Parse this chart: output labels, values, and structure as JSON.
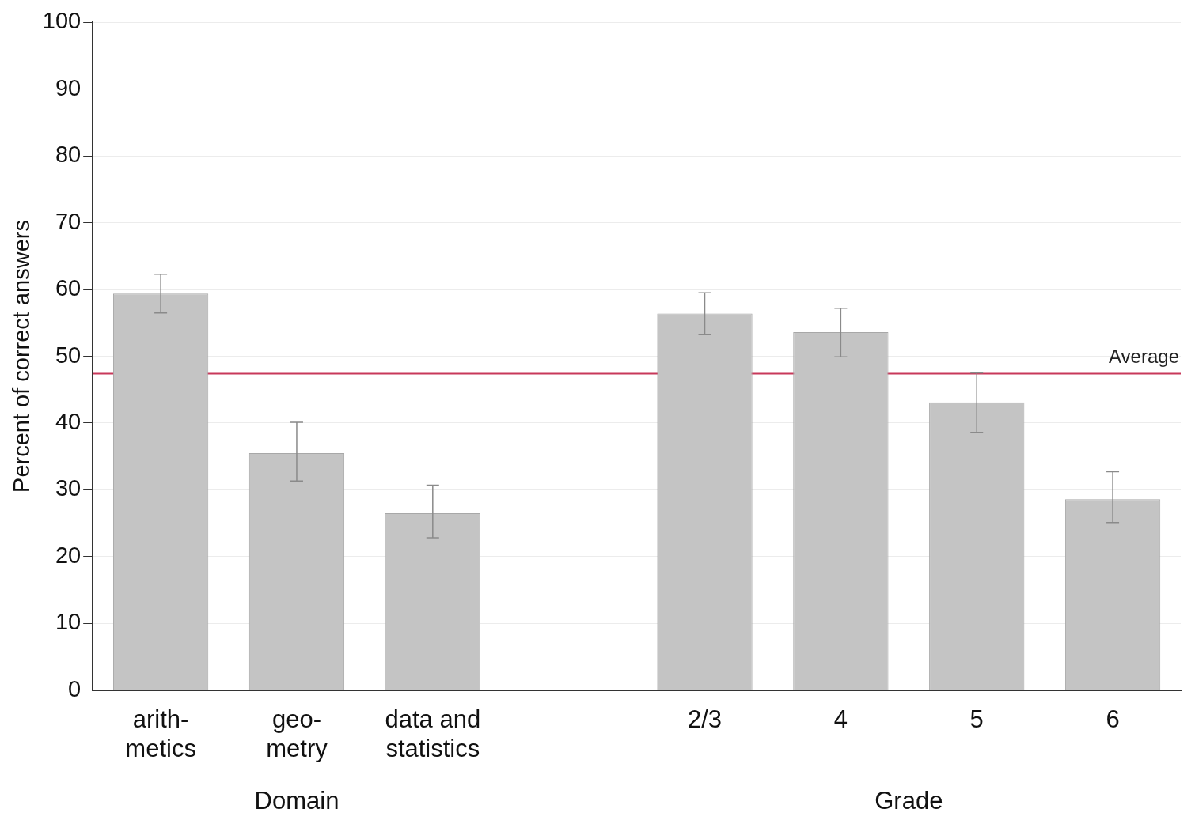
{
  "chart_data": {
    "type": "bar",
    "ylabel": "Percent of correct answers",
    "categories": [
      "arith-\nmetics",
      "geo-\nmetry",
      "data and\nstatistics",
      null,
      "2/3",
      "4",
      "5",
      "6"
    ],
    "values": [
      59.4,
      35.5,
      26.5,
      null,
      56.4,
      53.6,
      43.1,
      28.6
    ],
    "errors": [
      [
        56.5,
        62.3
      ],
      [
        31.3,
        40.1
      ],
      [
        22.8,
        30.7
      ],
      null,
      [
        53.3,
        59.5
      ],
      [
        49.9,
        57.2
      ],
      [
        38.6,
        47.5
      ],
      [
        25.1,
        32.7
      ]
    ],
    "color": "#c4c4c4",
    "ylim": [
      0,
      100
    ],
    "yticks": [
      0,
      10,
      20,
      30,
      40,
      50,
      60,
      70,
      80,
      90,
      100
    ],
    "grid": "y",
    "legend": false,
    "ref_lines": [
      {
        "axis": "y",
        "value": 47.4,
        "label": "Average",
        "color": "#c8385a"
      }
    ],
    "annotations": [
      "Domain",
      "Grade"
    ]
  }
}
